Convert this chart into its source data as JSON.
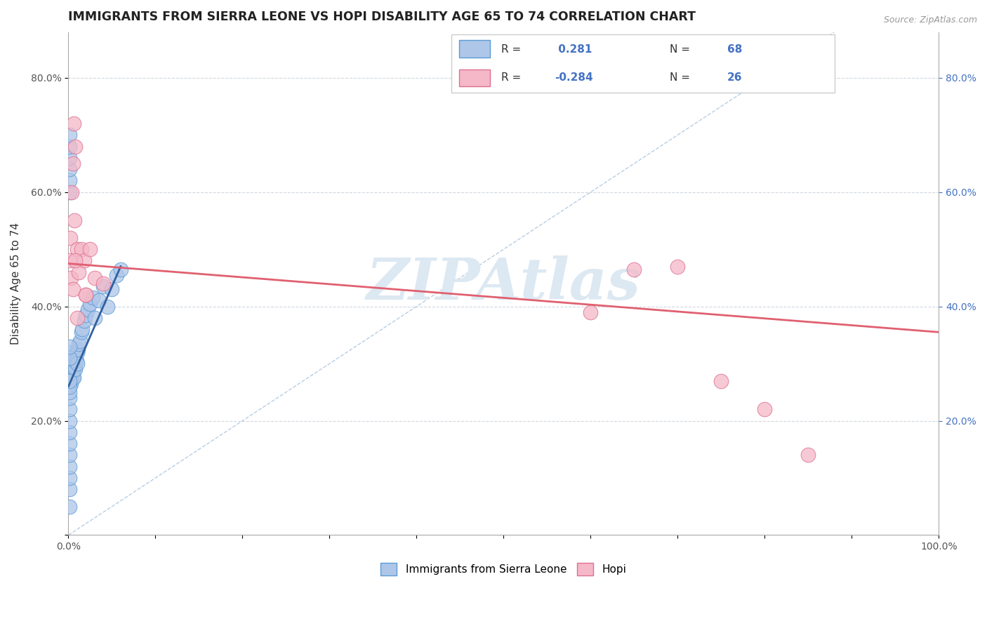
{
  "title": "IMMIGRANTS FROM SIERRA LEONE VS HOPI DISABILITY AGE 65 TO 74 CORRELATION CHART",
  "source": "Source: ZipAtlas.com",
  "ylabel": "Disability Age 65 to 74",
  "xlim": [
    0.0,
    1.0
  ],
  "ylim": [
    0.0,
    0.88
  ],
  "xticks": [
    0.0,
    0.1,
    0.2,
    0.3,
    0.4,
    0.5,
    0.6,
    0.7,
    0.8,
    0.9,
    1.0
  ],
  "xticklabels": [
    "0.0%",
    "",
    "",
    "",
    "",
    "",
    "",
    "",
    "",
    "",
    "100.0%"
  ],
  "yticks": [
    0.0,
    0.2,
    0.4,
    0.6,
    0.8
  ],
  "yticklabels": [
    "",
    "20.0%",
    "40.0%",
    "60.0%",
    "80.0%"
  ],
  "right_yticks": [
    0.2,
    0.4,
    0.6,
    0.8
  ],
  "right_yticklabels": [
    "20.0%",
    "40.0%",
    "60.0%",
    "80.0%"
  ],
  "blue_R": 0.281,
  "blue_N": 68,
  "pink_R": -0.284,
  "pink_N": 26,
  "blue_color": "#aec6e8",
  "blue_edge": "#5b9bd5",
  "pink_color": "#f4b8c8",
  "pink_edge": "#e07090",
  "blue_line_color": "#3060a0",
  "pink_line_color": "#e06070",
  "ref_line_color": "#b0c8e0",
  "legend_blue_label": "Immigrants from Sierra Leone",
  "legend_pink_label": "Hopi",
  "watermark": "ZIPAtlas",
  "blue_scatter_x": [
    0.0005,
    0.0005,
    0.0008,
    0.001,
    0.001,
    0.001,
    0.001,
    0.001,
    0.001,
    0.001,
    0.0012,
    0.0012,
    0.0015,
    0.0015,
    0.0015,
    0.002,
    0.002,
    0.002,
    0.002,
    0.002,
    0.002,
    0.0025,
    0.0025,
    0.003,
    0.003,
    0.003,
    0.003,
    0.003,
    0.003,
    0.003,
    0.0035,
    0.004,
    0.004,
    0.004,
    0.004,
    0.005,
    0.005,
    0.005,
    0.005,
    0.005,
    0.006,
    0.006,
    0.006,
    0.007,
    0.007,
    0.007,
    0.008,
    0.008,
    0.009,
    0.01,
    0.01,
    0.011,
    0.012,
    0.013,
    0.015,
    0.016,
    0.018,
    0.02,
    0.022,
    0.025,
    0.028,
    0.03,
    0.035,
    0.04,
    0.045,
    0.05,
    0.055,
    0.06
  ],
  "blue_scatter_y": [
    0.28,
    0.3,
    0.27,
    0.28,
    0.295,
    0.305,
    0.27,
    0.285,
    0.295,
    0.32,
    0.28,
    0.3,
    0.28,
    0.31,
    0.265,
    0.29,
    0.31,
    0.275,
    0.295,
    0.28,
    0.305,
    0.285,
    0.3,
    0.28,
    0.295,
    0.275,
    0.31,
    0.285,
    0.265,
    0.3,
    0.295,
    0.28,
    0.3,
    0.275,
    0.285,
    0.295,
    0.275,
    0.305,
    0.285,
    0.3,
    0.31,
    0.29,
    0.275,
    0.315,
    0.295,
    0.305,
    0.29,
    0.31,
    0.305,
    0.32,
    0.3,
    0.325,
    0.335,
    0.34,
    0.355,
    0.36,
    0.375,
    0.385,
    0.395,
    0.405,
    0.415,
    0.38,
    0.41,
    0.435,
    0.4,
    0.43,
    0.455,
    0.465
  ],
  "blue_extra_x": [
    0.001,
    0.001,
    0.001,
    0.001,
    0.001,
    0.001,
    0.001,
    0.001,
    0.001,
    0.001,
    0.001,
    0.001,
    0.001,
    0.001,
    0.001,
    0.001,
    0.001,
    0.001,
    0.001,
    0.001,
    0.001
  ],
  "blue_extra_y": [
    0.05,
    0.08,
    0.1,
    0.12,
    0.14,
    0.16,
    0.18,
    0.2,
    0.22,
    0.24,
    0.6,
    0.62,
    0.64,
    0.66,
    0.68,
    0.7,
    0.25,
    0.26,
    0.27,
    0.31,
    0.33
  ],
  "pink_scatter_x": [
    0.001,
    0.002,
    0.003,
    0.004,
    0.005,
    0.006,
    0.007,
    0.008,
    0.01,
    0.012,
    0.015,
    0.018,
    0.02,
    0.025,
    0.03,
    0.04,
    0.6,
    0.65,
    0.7,
    0.75,
    0.8,
    0.85,
    0.005,
    0.008,
    0.01,
    0.02
  ],
  "pink_scatter_y": [
    0.48,
    0.52,
    0.45,
    0.6,
    0.65,
    0.72,
    0.55,
    0.68,
    0.5,
    0.46,
    0.5,
    0.48,
    0.42,
    0.5,
    0.45,
    0.44,
    0.39,
    0.465,
    0.47,
    0.27,
    0.22,
    0.14,
    0.43,
    0.48,
    0.38,
    0.42
  ],
  "blue_line_x": [
    0.0,
    0.06
  ],
  "blue_line_y": [
    0.26,
    0.47
  ],
  "pink_line_x": [
    0.0,
    1.0
  ],
  "pink_line_y": [
    0.475,
    0.355
  ],
  "ref_line_x": [
    0.0,
    0.88
  ],
  "ref_line_y": [
    0.0,
    0.88
  ]
}
